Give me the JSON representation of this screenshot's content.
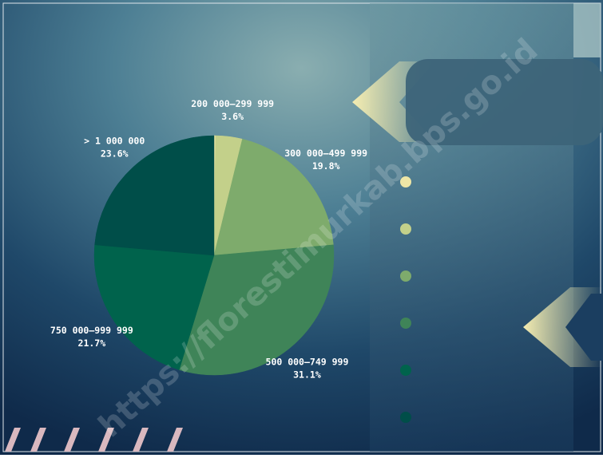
{
  "chart_data": {
    "type": "pie",
    "categories": [
      null,
      "200 000–299 999",
      "300 000–499 999",
      "500 000–749 999",
      "750 000–999 999",
      "> 1 000 000"
    ],
    "values": [
      0.2,
      3.6,
      19.8,
      31.1,
      21.7,
      23.6
    ],
    "value_labels": [
      null,
      "3.6%",
      "19.8%",
      "31.1%",
      "21.7%",
      "23.6%"
    ],
    "colors": [
      "#eee6a6",
      "#c3d08a",
      "#7eab6c",
      "#3f8458",
      "#00634c",
      "#004e49"
    ]
  },
  "watermark": "https://florestimurkab.bps.go.id"
}
